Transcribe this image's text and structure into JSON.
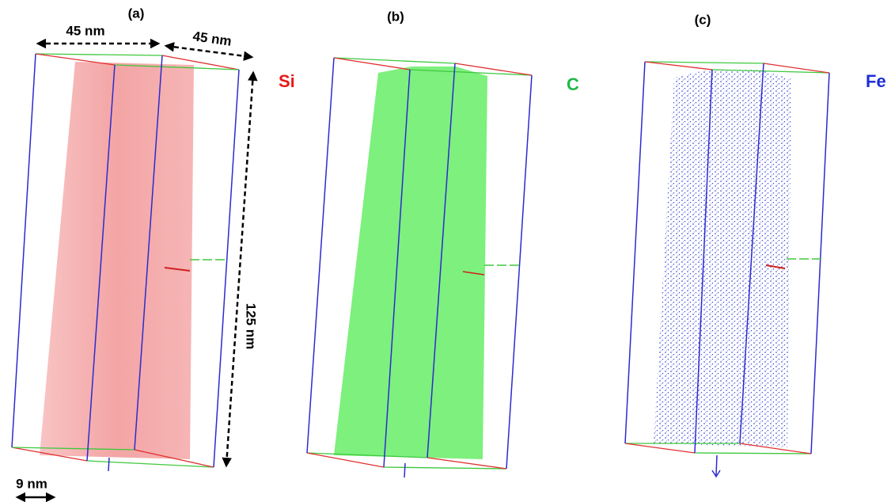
{
  "panels": [
    {
      "label": "(a)",
      "element": "Si"
    },
    {
      "label": "(b)",
      "element": "C"
    },
    {
      "label": "(c)",
      "element": "Fe"
    }
  ],
  "dimensions": {
    "width_top": "45 nm",
    "depth_top": "45 nm",
    "height": "125 nm",
    "scale_bar": "9 nm"
  }
}
